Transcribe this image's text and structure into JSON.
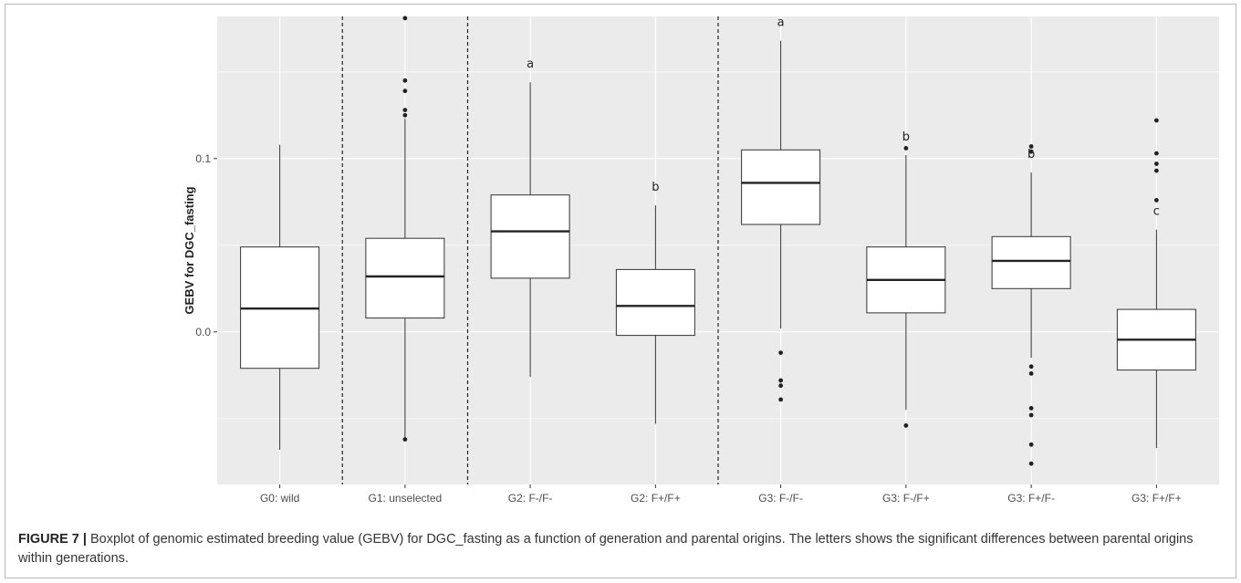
{
  "chart_data": {
    "type": "boxplot",
    "title": "",
    "xlabel": "",
    "ylabel": "GEBV for DGC_fasting",
    "ylim": [
      -0.088,
      0.182
    ],
    "y_ticks": [
      {
        "value": 0.1,
        "label": "0.1"
      },
      {
        "value": 0.0,
        "label": "0.0"
      }
    ],
    "grid": true,
    "group_separators_after": [
      "G0: wild",
      "G1: unselected",
      "G2: F+/F+"
    ],
    "categories": [
      "G0: wild",
      "G1: unselected",
      "G2: F-/F-",
      "G2: F+/F+",
      "G3: F-/F-",
      "G3: F-/F+",
      "G3: F+/F-",
      "G3: F+/F+"
    ],
    "boxes": [
      {
        "category": "G0: wild",
        "whisker_low": -0.068,
        "q1": -0.021,
        "median": 0.0135,
        "q3": 0.049,
        "whisker_high": 0.108,
        "outliers": [],
        "letter": ""
      },
      {
        "category": "G1: unselected",
        "whisker_low": -0.061,
        "q1": 0.008,
        "median": 0.032,
        "q3": 0.054,
        "whisker_high": 0.123,
        "outliers": [
          -0.062,
          0.125,
          0.128,
          0.139,
          0.145,
          0.181
        ],
        "letter": ""
      },
      {
        "category": "G2: F-/F-",
        "whisker_low": -0.026,
        "q1": 0.031,
        "median": 0.058,
        "q3": 0.079,
        "whisker_high": 0.144,
        "outliers": [],
        "letter": "a"
      },
      {
        "category": "G2: F+/F+",
        "whisker_low": -0.053,
        "q1": -0.002,
        "median": 0.015,
        "q3": 0.036,
        "whisker_high": 0.073,
        "outliers": [],
        "letter": "b"
      },
      {
        "category": "G3: F-/F-",
        "whisker_low": 0.002,
        "q1": 0.062,
        "median": 0.086,
        "q3": 0.105,
        "whisker_high": 0.168,
        "outliers": [
          -0.012,
          -0.028,
          -0.031,
          -0.039
        ],
        "letter": "a"
      },
      {
        "category": "G3: F-/F+",
        "whisker_low": -0.045,
        "q1": 0.011,
        "median": 0.03,
        "q3": 0.049,
        "whisker_high": 0.102,
        "outliers": [
          0.106,
          -0.054
        ],
        "letter": "b"
      },
      {
        "category": "G3: F+/F-",
        "whisker_low": -0.015,
        "q1": 0.025,
        "median": 0.041,
        "q3": 0.055,
        "whisker_high": 0.092,
        "outliers": [
          0.104,
          0.107,
          -0.02,
          -0.024,
          -0.044,
          -0.048,
          -0.065,
          -0.076
        ],
        "letter": "b"
      },
      {
        "category": "G3: F+/F+",
        "whisker_low": -0.067,
        "q1": -0.022,
        "median": -0.0045,
        "q3": 0.013,
        "whisker_high": 0.059,
        "outliers": [
          0.076,
          0.093,
          0.097,
          0.103,
          0.122
        ],
        "letter": "c"
      }
    ],
    "colors": {
      "panel_background": "#ebebeb",
      "grid_line": "#ffffff",
      "box_fill": "#ffffff",
      "box_stroke": "#333333"
    }
  },
  "caption": {
    "label": "FIGURE 7 |",
    "text": " Boxplot of genomic estimated breeding value (GEBV) for DGC_fasting as a function of generation and parental origins. The letters shows the significant differences between parental origins within generations."
  }
}
